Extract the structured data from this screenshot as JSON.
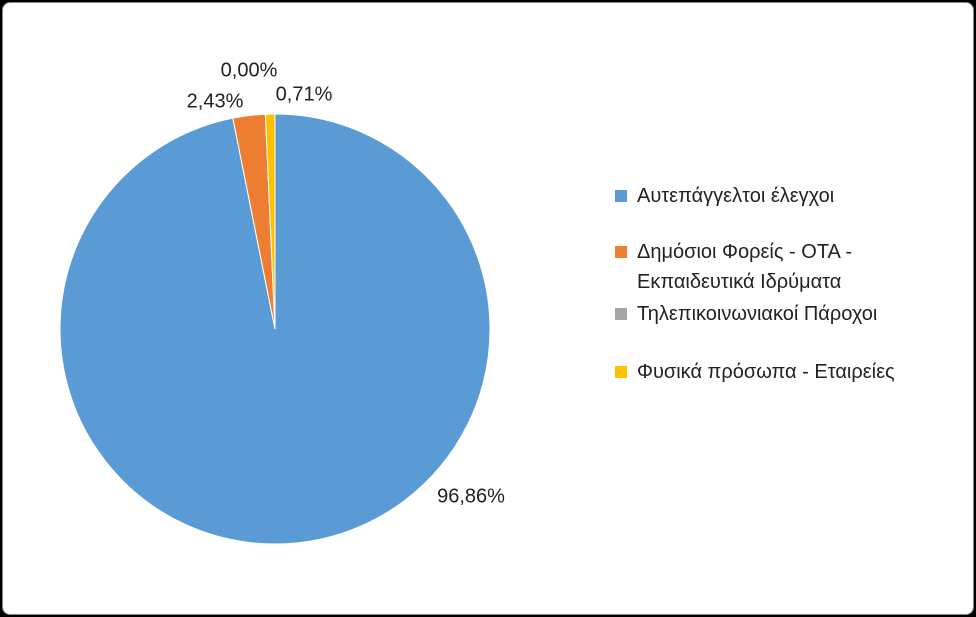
{
  "chart_data": {
    "type": "pie",
    "categories": [
      "Αυτεπάγγελτοι έλεγχοι",
      "Δημόσιοι Φορείς - ΟΤΑ - Εκπαιδευτικά Ιδρύματα",
      "Τηλεπικοινωνιακοί Πάροχοι",
      "Φυσικά πρόσωπα - Εταιρείες"
    ],
    "values": [
      96.86,
      2.43,
      0,
      0.71
    ],
    "value_labels": [
      "96,86%",
      "2,43%",
      "0,00%",
      "0,71%"
    ],
    "colors": [
      "#5b9bd5",
      "#ed7d31",
      "#a5a5a5",
      "#ffc000"
    ],
    "legend": "right"
  }
}
